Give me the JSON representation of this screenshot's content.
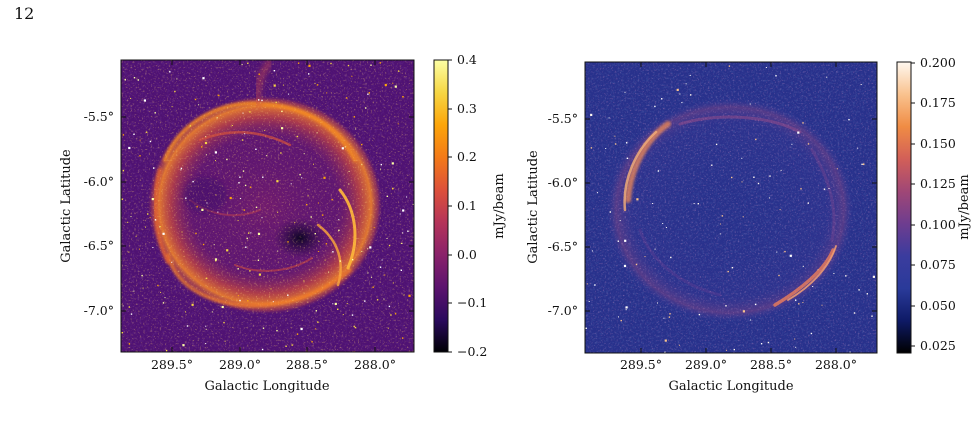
{
  "page_number": "12",
  "colors": {
    "left_cmap": [
      "#000004",
      "#2b0a5e",
      "#5c136e",
      "#8a226a",
      "#b53459",
      "#dd513a",
      "#f37a18",
      "#fca50a",
      "#f6d644",
      "#fcffa4"
    ],
    "right_cmap": [
      "#000000",
      "#0e1a66",
      "#2a3a9a",
      "#3b3c9e",
      "#6e3d8f",
      "#a04776",
      "#d25f58",
      "#f08c44",
      "#f9c28e",
      "#fff8f0"
    ]
  },
  "panels": [
    {
      "name": "left",
      "ylabel": "Galactic Latitude",
      "xlabel": "Galactic Longitude",
      "xticks": [
        "289.5°",
        "289.0°",
        "288.5°",
        "288.0°"
      ],
      "yticks": [
        "-5.5°",
        "-6.0°",
        "-6.5°",
        "-7.0°"
      ],
      "colorbar": {
        "label": "mJy/beam",
        "ticks": [
          "0.4",
          "0.3",
          "0.2",
          "0.1",
          "0.0",
          "−0.1",
          "−0.2"
        ],
        "range": [
          -0.2,
          0.4
        ]
      }
    },
    {
      "name": "right",
      "ylabel": "Galactic Latitude",
      "xlabel": "Galactic Longitude",
      "xticks": [
        "289.5°",
        "289.0°",
        "288.5°",
        "288.0°"
      ],
      "yticks": [
        "-5.5°",
        "-6.0°",
        "-6.5°",
        "-7.0°"
      ],
      "colorbar": {
        "label": "mJy/beam",
        "ticks": [
          "0.200",
          "0.175",
          "0.150",
          "0.125",
          "0.100",
          "0.075",
          "0.050",
          "0.025"
        ],
        "range": [
          0.02,
          0.2
        ]
      }
    }
  ]
}
